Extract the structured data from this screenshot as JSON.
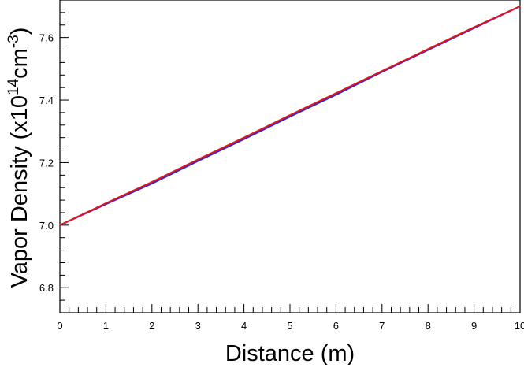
{
  "chart_data": {
    "type": "line",
    "xlabel": "Distance (m)",
    "ylabel": {
      "prefix": "Vapor Density (x10",
      "exp1": "14",
      "mid": "cm",
      "exp2": "-3",
      "suffix": ")"
    },
    "xlim": [
      0,
      10
    ],
    "ylim": [
      6.72,
      7.72
    ],
    "x_ticks": [
      "0",
      "1",
      "2",
      "3",
      "4",
      "5",
      "6",
      "7",
      "8",
      "9",
      "10"
    ],
    "y_ticks": [
      "6.8",
      "7.0",
      "7.2",
      "7.4",
      "7.6"
    ],
    "grid": false,
    "series": [
      {
        "color": "#2b2bd6",
        "x": [
          0,
          1,
          2,
          3,
          4,
          5,
          6,
          7,
          8,
          9,
          10
        ],
        "y": [
          7.0,
          7.067,
          7.133,
          7.205,
          7.275,
          7.347,
          7.417,
          7.49,
          7.56,
          7.63,
          7.7
        ]
      },
      {
        "color": "#e8141c",
        "x": [
          0,
          1,
          2,
          3,
          4,
          5,
          6,
          7,
          8,
          9,
          10
        ],
        "y": [
          7.0,
          7.07,
          7.138,
          7.21,
          7.28,
          7.352,
          7.422,
          7.493,
          7.563,
          7.633,
          7.7
        ]
      }
    ]
  }
}
